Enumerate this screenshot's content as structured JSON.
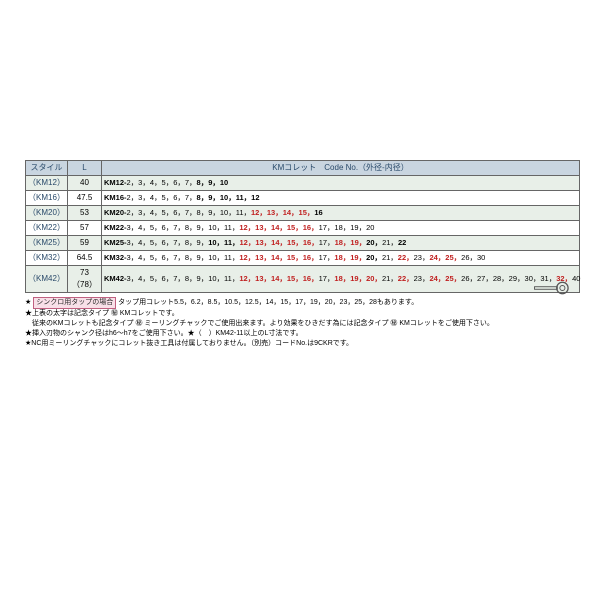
{
  "table": {
    "headers": {
      "style": "スタイル",
      "l": "L",
      "code": "KMコレット　Code No.（外径-内径）"
    },
    "rows": [
      {
        "style": "（KM12）",
        "l": "40",
        "km": "KM12-",
        "segs": [
          [
            "p",
            "2，3，4，5，6，7，"
          ],
          [
            "b",
            "8，9，10"
          ]
        ]
      },
      {
        "style": "（KM16）",
        "l": "47.5",
        "km": "KM16-",
        "segs": [
          [
            "p",
            "2，3，4，5，6，7，"
          ],
          [
            "b",
            "8，9，10，11，12"
          ]
        ]
      },
      {
        "style": "（KM20）",
        "l": "53",
        "km": "KM20-",
        "segs": [
          [
            "p",
            "2，3，4，5，6，7，8，9，10，11，"
          ],
          [
            "r",
            "12，13，14，15，"
          ],
          [
            "b",
            "16"
          ]
        ]
      },
      {
        "style": "（KM22）",
        "l": "57",
        "km": "KM22-",
        "segs": [
          [
            "p",
            "3，4，5，6，7，8，9，10，11，"
          ],
          [
            "r",
            "12，13，14，15，16，"
          ],
          [
            "p",
            "17，18，19，20"
          ]
        ]
      },
      {
        "style": "（KM25）",
        "l": "59",
        "km": "KM25-",
        "segs": [
          [
            "p",
            "3，4，5，6，7，8，9，"
          ],
          [
            "b",
            "10，11，"
          ],
          [
            "r",
            "12，13，14，15，16，"
          ],
          [
            "p",
            "17，"
          ],
          [
            "r",
            "18，19，"
          ],
          [
            "b",
            "20，"
          ],
          [
            "p",
            "21，"
          ],
          [
            "b",
            "22"
          ]
        ]
      },
      {
        "style": "（KM32）",
        "l": "64.5",
        "km": "KM32-",
        "segs": [
          [
            "p",
            "3，4，5，6，7，8，9，10，11，"
          ],
          [
            "r",
            "12，13，14，15，16，"
          ],
          [
            "p",
            "17，"
          ],
          [
            "r",
            "18，19，"
          ],
          [
            "b",
            "20，"
          ],
          [
            "p",
            "21，"
          ],
          [
            "r",
            "22，"
          ],
          [
            "p",
            "23，"
          ],
          [
            "r",
            "24，25，"
          ],
          [
            "p",
            "26，30"
          ]
        ]
      },
      {
        "style": "（KM42）",
        "l": "73（78）",
        "km": "KM42-",
        "segs": [
          [
            "p",
            "3，4，5，6，7，8，9，10，11，"
          ],
          [
            "r",
            "12，13，14，15，16，"
          ],
          [
            "p",
            "17，"
          ],
          [
            "r",
            "18，19，20，"
          ],
          [
            "p",
            "21，"
          ],
          [
            "r",
            "22，"
          ],
          [
            "p",
            "23，"
          ],
          [
            "r",
            "24，25，"
          ],
          [
            "p",
            "26，27，28，29，30，31，"
          ],
          [
            "r",
            "32，"
          ],
          [
            "p",
            "40"
          ]
        ]
      }
    ]
  },
  "notes": {
    "n1a": "★ ",
    "n1box": "シンクロ用タップの場合",
    "n1b": " タップ用コレット5.5，6.2，8.5，10.5，12.5，14，15，17，19，20，23，25，28もあります。",
    "n2": "★上表の太字は記念タイプ ㊙ KMコレットです。",
    "n3": "　従来のKMコレットも記念タイプ ㊙ ミーリングチャックでご使用出来ます。より効果をひきだす為には記念タイプ ㊙ KMコレットをご使用下さい。",
    "n4": "★挿入刃物のシャンク径はh6〜h7をご使用下さい。★（　）KM42-11以上のL寸法です。",
    "n5": "★NC用ミーリングチャックにコレット抜き工具は付属しておりません。（別売）コードNo.は9CKRです。"
  }
}
